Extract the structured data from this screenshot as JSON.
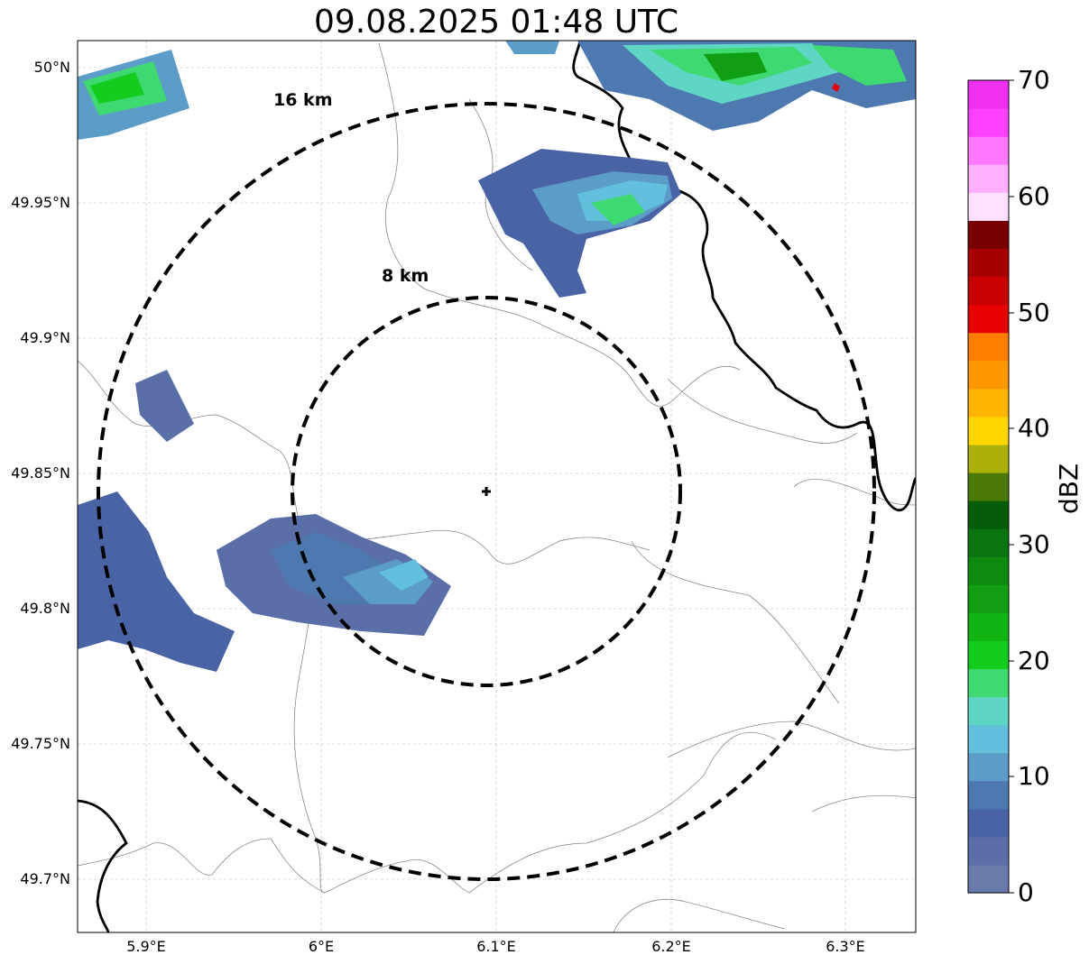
{
  "title": "09.08.2025 01:48 UTC",
  "map": {
    "lat_ticks": [
      "50°N",
      "49.95°N",
      "49.9°N",
      "49.85°N",
      "49.8°N",
      "49.75°N",
      "49.7°N"
    ],
    "lon_ticks": [
      "5.9°E",
      "6°E",
      "6.1°E",
      "6.2°E",
      "6.3°E"
    ],
    "center_marker": "radar-site-cross",
    "rings": [
      {
        "label": "8 km"
      },
      {
        "label": "16 km"
      }
    ]
  },
  "colorbar": {
    "label": "dBZ",
    "ticks": [
      "70",
      "60",
      "50",
      "40",
      "30",
      "20",
      "10",
      "0"
    ],
    "colors": [
      "#6a7aab",
      "#5a6fa8",
      "#4a63a5",
      "#4d79b0",
      "#5b9dc8",
      "#62c0dc",
      "#5fd6c4",
      "#3ed970",
      "#14cc1e",
      "#12b414",
      "#109e12",
      "#0e8a10",
      "#0a7510",
      "#075c0a",
      "#4b7a08",
      "#acb00a",
      "#ffd600",
      "#ffb400",
      "#ff9800",
      "#ff7e00",
      "#e60000",
      "#c80000",
      "#a80000",
      "#780000",
      "#ffe0ff",
      "#ffb0ff",
      "#ff78ff",
      "#ff40ff",
      "#f030f0"
    ]
  }
}
